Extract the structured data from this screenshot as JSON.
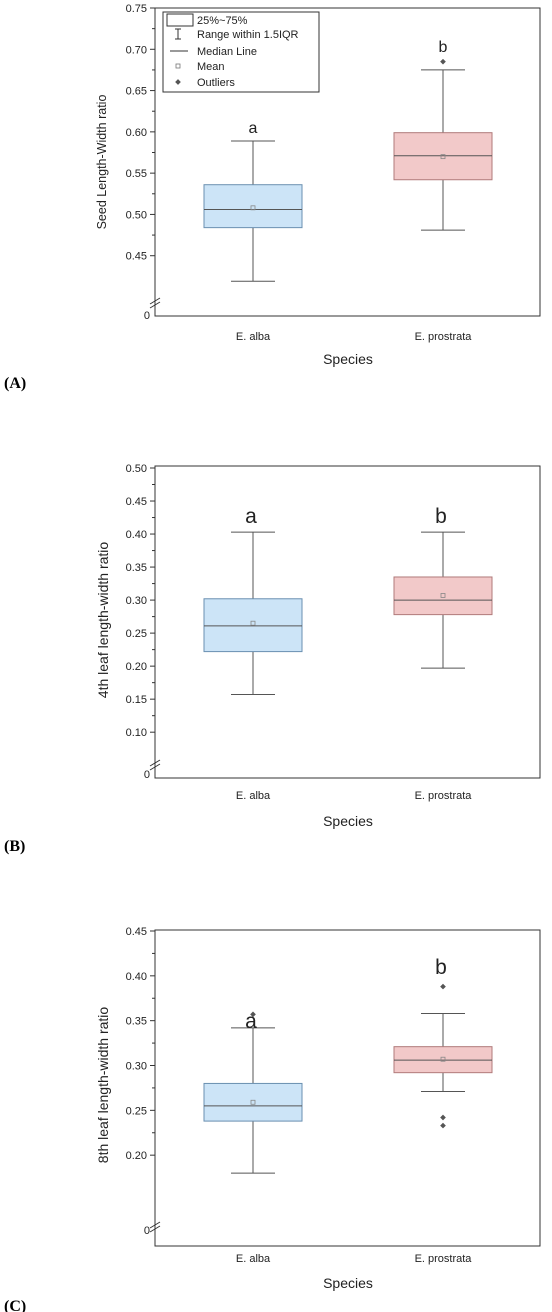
{
  "colors": {
    "alba_fill": "#cce4f7",
    "alba_stroke": "#6a8fb0",
    "prostrata_fill": "#f2c9c9",
    "prostrata_stroke": "#b07a7a",
    "axis": "#333333"
  },
  "legend": {
    "items": [
      "25%~75%",
      "Range within 1.5IQR",
      "Median Line",
      "Mean",
      "Outliers"
    ]
  },
  "chart_data": [
    {
      "panel": "(A)",
      "type": "box",
      "xlabel": "Species",
      "ylabel": "Seed Length-Width ratio",
      "categories": [
        "E. alba",
        "E. prostrata"
      ],
      "yticks": [
        "0",
        "0.45",
        "0.50",
        "0.55",
        "0.60",
        "0.65",
        "0.70",
        "0.75"
      ],
      "ylim": [
        0.4,
        0.75
      ],
      "axis_break": true,
      "legend": "top-left",
      "letters": [
        "a",
        "b"
      ],
      "boxes": [
        {
          "name": "E. alba",
          "whisker_low": 0.419,
          "q1": 0.484,
          "median": 0.506,
          "mean": 0.508,
          "q3": 0.536,
          "whisker_high": 0.589,
          "outliers": []
        },
        {
          "name": "E. prostrata",
          "whisker_low": 0.481,
          "q1": 0.542,
          "median": 0.571,
          "mean": 0.57,
          "q3": 0.599,
          "whisker_high": 0.675,
          "outliers": [
            0.685
          ]
        }
      ]
    },
    {
      "panel": "(B)",
      "type": "box",
      "xlabel": "Species",
      "ylabel": "4th leaf length-width ratio",
      "categories": [
        "E. alba",
        "E. prostrata"
      ],
      "yticks": [
        "0",
        "0.10",
        "0.15",
        "0.20",
        "0.25",
        "0.30",
        "0.35",
        "0.40",
        "0.45",
        "0.50"
      ],
      "ylim": [
        0.07,
        0.5
      ],
      "axis_break": true,
      "legend": "none",
      "letters": [
        "a",
        "b"
      ],
      "boxes": [
        {
          "name": "E. alba",
          "whisker_low": 0.157,
          "q1": 0.222,
          "median": 0.261,
          "mean": 0.265,
          "q3": 0.302,
          "whisker_high": 0.403,
          "outliers": []
        },
        {
          "name": "E. prostrata",
          "whisker_low": 0.197,
          "q1": 0.278,
          "median": 0.3,
          "mean": 0.307,
          "q3": 0.335,
          "whisker_high": 0.403,
          "outliers": []
        }
      ]
    },
    {
      "panel": "(C)",
      "type": "box",
      "xlabel": "Species",
      "ylabel": "8th leaf length-width ratio",
      "categories": [
        "E. alba",
        "E. prostrata"
      ],
      "yticks": [
        "0",
        "0.20",
        "0.25",
        "0.30",
        "0.35",
        "0.40",
        "0.45"
      ],
      "ylim": [
        0.15,
        0.45
      ],
      "axis_break": true,
      "legend": "none",
      "letters": [
        "a",
        "b"
      ],
      "boxes": [
        {
          "name": "E. alba",
          "whisker_low": 0.18,
          "q1": 0.238,
          "median": 0.255,
          "mean": 0.259,
          "q3": 0.28,
          "whisker_high": 0.342,
          "outliers": [
            0.357
          ]
        },
        {
          "name": "E. prostrata",
          "whisker_low": 0.271,
          "q1": 0.292,
          "median": 0.306,
          "mean": 0.307,
          "q3": 0.321,
          "whisker_high": 0.358,
          "outliers": [
            0.388,
            0.242,
            0.233
          ]
        }
      ]
    }
  ]
}
